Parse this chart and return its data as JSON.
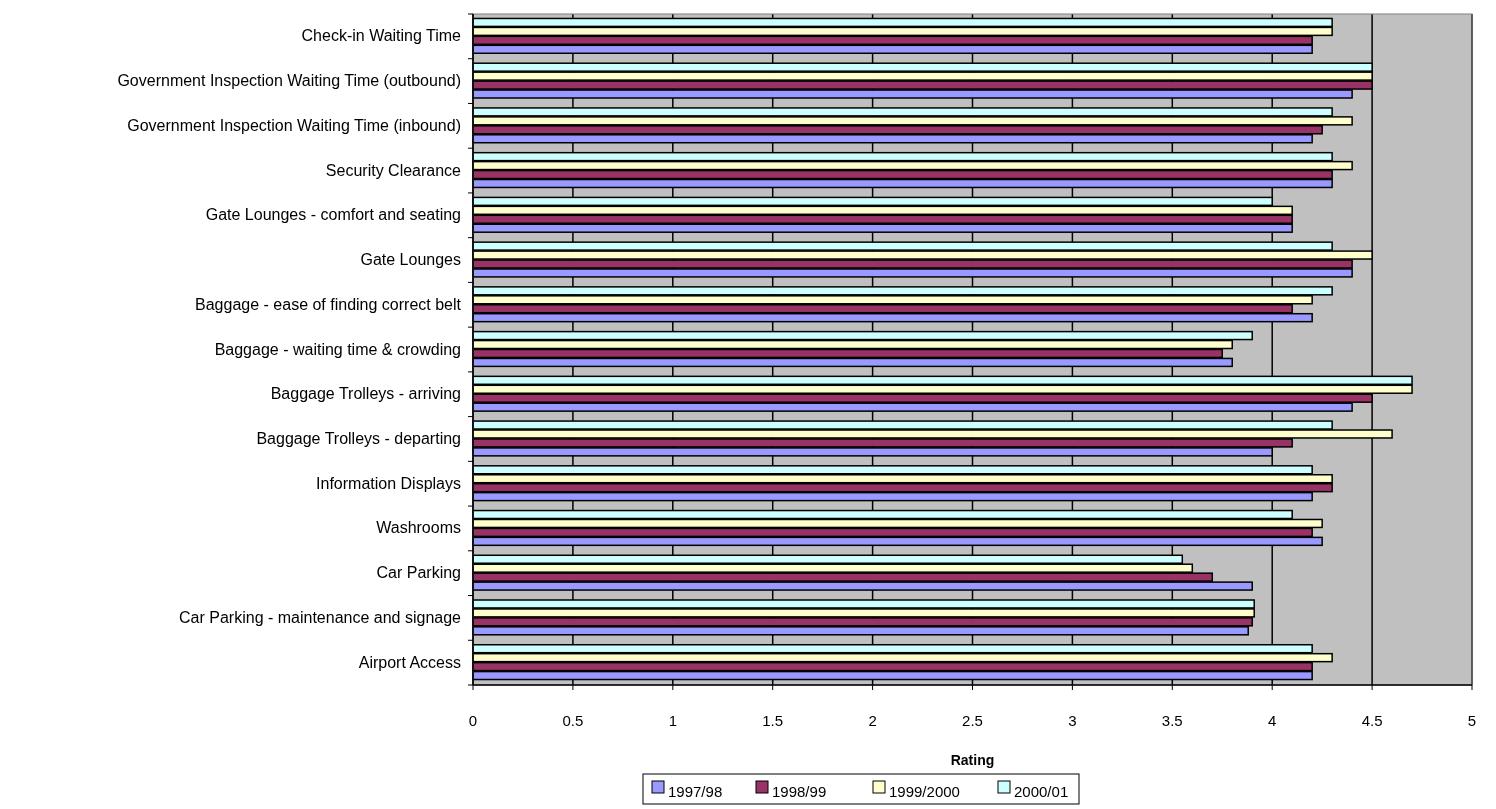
{
  "chart_data": {
    "type": "bar",
    "orientation": "horizontal",
    "xlabel": "Rating",
    "categories": [
      "Check-in Waiting Time",
      "Government Inspection Waiting Time (outbound)",
      "Government Inspection Waiting Time (inbound)",
      "Security Clearance",
      "Gate Lounges - comfort and seating",
      "Gate Lounges",
      "Baggage - ease of finding correct belt",
      "Baggage - waiting time & crowding",
      "Baggage Trolleys - arriving",
      "Baggage Trolleys - departing",
      "Information Displays",
      "Washrooms",
      "Car Parking",
      "Car Parking - maintenance and signage",
      "Airport Access"
    ],
    "series": [
      {
        "name": "1997/98",
        "color": "#9999ff",
        "values": [
          4.2,
          4.4,
          4.2,
          4.3,
          4.1,
          4.4,
          4.2,
          3.8,
          4.4,
          4.0,
          4.2,
          4.25,
          3.9,
          3.88,
          4.2
        ]
      },
      {
        "name": "1998/99",
        "color": "#993366",
        "values": [
          4.2,
          4.5,
          4.25,
          4.3,
          4.1,
          4.4,
          4.1,
          3.75,
          4.5,
          4.1,
          4.3,
          4.2,
          3.7,
          3.9,
          4.2
        ]
      },
      {
        "name": "1999/2000",
        "color": "#ffffcc",
        "values": [
          4.3,
          4.5,
          4.4,
          4.4,
          4.1,
          4.5,
          4.2,
          3.8,
          4.7,
          4.6,
          4.3,
          4.25,
          3.6,
          3.91,
          4.3
        ]
      },
      {
        "name": "2000/01",
        "color": "#ccffff",
        "values": [
          4.3,
          4.5,
          4.3,
          4.3,
          4.0,
          4.3,
          4.3,
          3.9,
          4.7,
          4.3,
          4.2,
          4.1,
          3.55,
          3.91,
          4.2
        ]
      }
    ],
    "xlim": [
      0,
      5
    ],
    "xticks": [
      0,
      0.5,
      1,
      1.5,
      2,
      2.5,
      3,
      3.5,
      4,
      4.5,
      5
    ],
    "grid": "x",
    "legend": "bottom"
  }
}
